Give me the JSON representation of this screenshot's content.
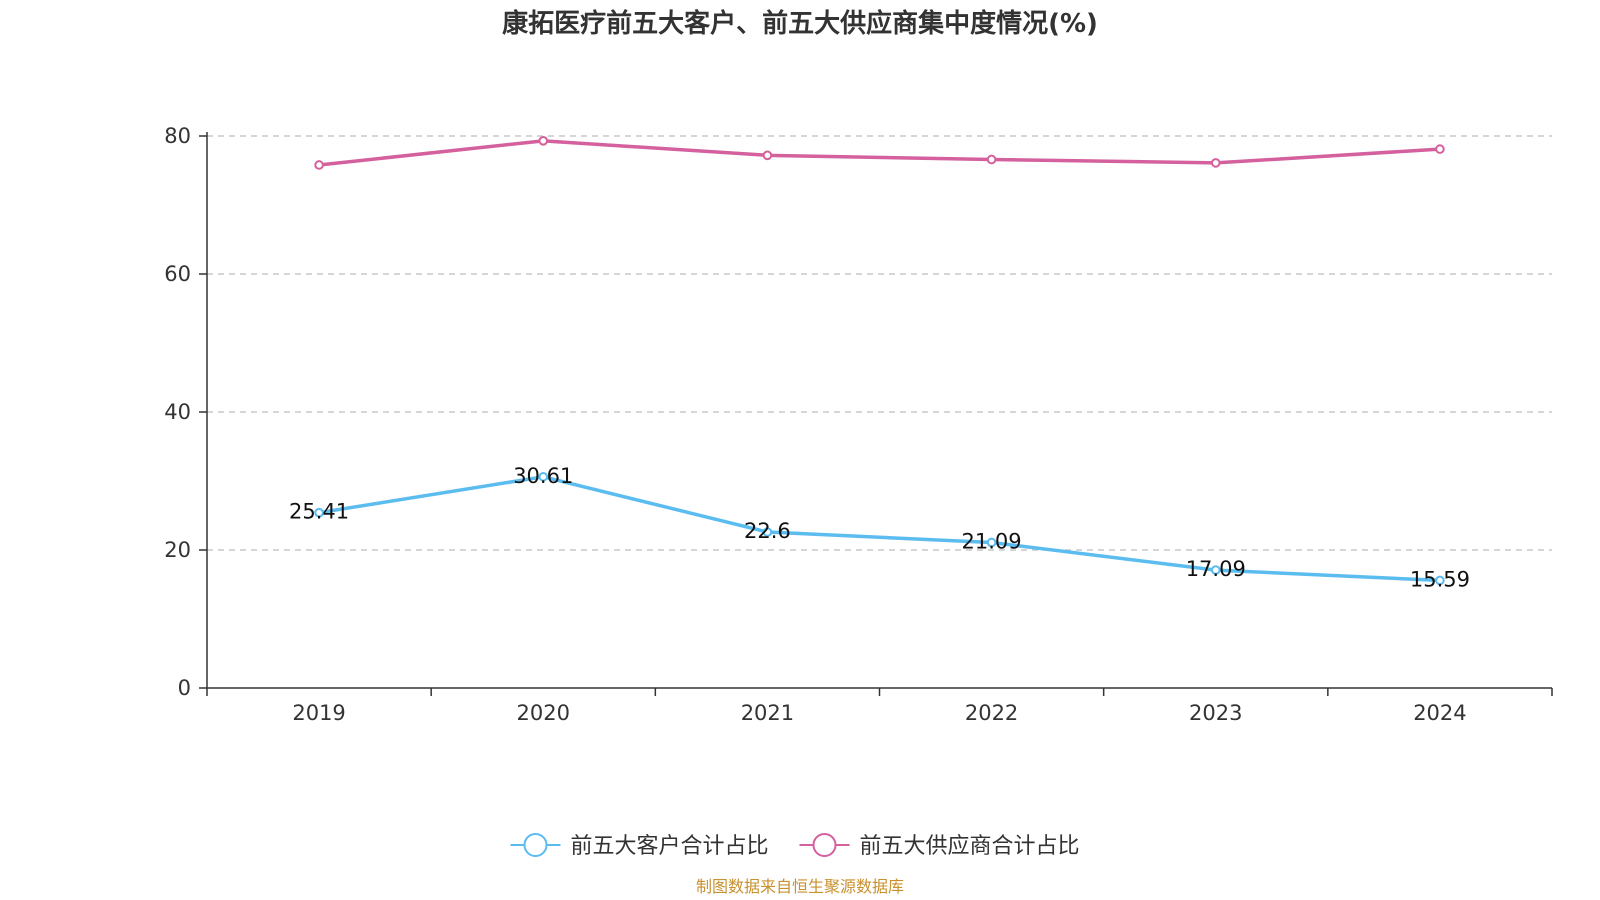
{
  "chart_data": {
    "type": "line",
    "title": "康拓医疗前五大客户、前五大供应商集中度情况(%)",
    "categories": [
      "2019",
      "2020",
      "2021",
      "2022",
      "2023",
      "2024"
    ],
    "ylim": [
      0,
      80
    ],
    "yticks": [
      0,
      20,
      40,
      60,
      80
    ],
    "grid": true,
    "legend_position": "bottom-center",
    "series": [
      {
        "name": "前五大客户合计占比",
        "values": [
          25.41,
          30.61,
          22.6,
          21.09,
          17.09,
          15.59
        ],
        "labels": [
          "25.41",
          "30.61",
          "22.6",
          "21.09",
          "17.09",
          "15.59"
        ],
        "color": "#5bbcf0",
        "show_labels": true
      },
      {
        "name": "前五大供应商合计占比",
        "values": [
          75.8,
          79.3,
          77.2,
          76.6,
          76.1,
          78.1
        ],
        "color": "#d4609e",
        "show_labels": false
      }
    ]
  },
  "source_note": "制图数据来自恒生聚源数据库",
  "colors": {
    "axis": "#333333",
    "grid": "#c8c8c8",
    "source": "#c8902e"
  }
}
